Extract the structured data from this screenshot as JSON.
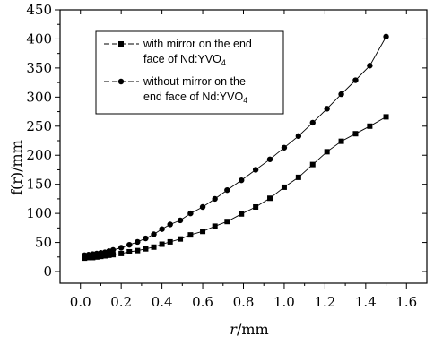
{
  "chart_data": {
    "type": "line",
    "xlabel_italic": "r",
    "xlabel_unit": "/mm",
    "ylabel": "f(r)/mm",
    "xlim": [
      -0.1,
      1.7
    ],
    "ylim": [
      -20,
      450
    ],
    "xticks": [
      0.0,
      0.2,
      0.4,
      0.6,
      0.8,
      1.0,
      1.2,
      1.4,
      1.6
    ],
    "xtick_labels": [
      "0.0",
      "0.2",
      "0.4",
      "0.6",
      "0.8",
      "1.0",
      "1.2",
      "1.4",
      "1.6"
    ],
    "yticks": [
      0,
      50,
      100,
      150,
      200,
      250,
      300,
      350,
      400,
      450
    ],
    "ytick_labels": [
      "0",
      "50",
      "100",
      "150",
      "200",
      "250",
      "300",
      "350",
      "400",
      "450"
    ],
    "grid": false,
    "legend_position": "top-left",
    "series": [
      {
        "name_main": "with mirror on the end",
        "name_line2": "face of Nd:YVO",
        "name_sub": "4",
        "marker": "square",
        "x": [
          0.02,
          0.04,
          0.06,
          0.08,
          0.1,
          0.12,
          0.14,
          0.16,
          0.2,
          0.24,
          0.28,
          0.32,
          0.36,
          0.4,
          0.44,
          0.49,
          0.54,
          0.6,
          0.66,
          0.72,
          0.79,
          0.86,
          0.93,
          1.0,
          1.07,
          1.14,
          1.21,
          1.28,
          1.35,
          1.42,
          1.5
        ],
        "y": [
          23,
          24,
          24,
          25,
          26,
          27,
          28,
          29,
          31,
          34,
          36,
          39,
          42,
          47,
          51,
          56,
          63,
          69,
          78,
          86,
          99,
          111,
          126,
          145,
          162,
          184,
          206,
          224,
          237,
          250,
          266
        ]
      },
      {
        "name_main": "without mirror on the",
        "name_line2": "end face of Nd:YVO",
        "name_sub": "4",
        "marker": "circle",
        "x": [
          0.02,
          0.04,
          0.06,
          0.08,
          0.1,
          0.12,
          0.14,
          0.16,
          0.2,
          0.24,
          0.28,
          0.32,
          0.36,
          0.4,
          0.44,
          0.49,
          0.54,
          0.6,
          0.66,
          0.72,
          0.79,
          0.86,
          0.93,
          1.0,
          1.07,
          1.14,
          1.21,
          1.28,
          1.35,
          1.42,
          1.5
        ],
        "y": [
          28,
          29,
          30,
          31,
          32,
          33,
          35,
          37,
          41,
          46,
          51,
          57,
          64,
          73,
          81,
          88,
          100,
          111,
          125,
          140,
          157,
          175,
          193,
          213,
          233,
          256,
          280,
          305,
          329,
          354,
          404
        ]
      }
    ]
  }
}
